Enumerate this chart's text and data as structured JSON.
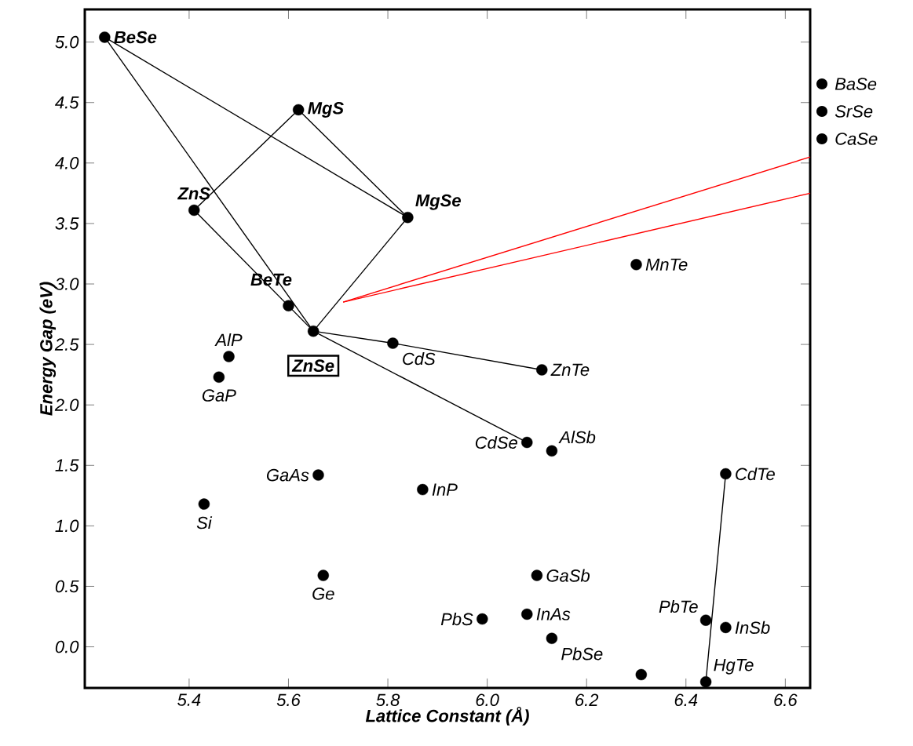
{
  "chart_data": {
    "type": "scatter",
    "xlabel": "Lattice Constant (Å)",
    "ylabel": "Energy Gap (eV)",
    "xlim": [
      5.19,
      6.65
    ],
    "ylim": [
      -0.34,
      5.27
    ],
    "xticks": [
      5.4,
      5.6,
      5.8,
      {
        "value": 6,
        "label": "6.0"
      },
      6.2,
      6.4,
      6.6
    ],
    "yticks": [
      {
        "value": 0,
        "label": "0.0"
      },
      0.5,
      {
        "value": 1,
        "label": "1.0"
      },
      1.5,
      {
        "value": 2,
        "label": "2.0"
      },
      2.5,
      {
        "value": 3,
        "label": "3.0"
      },
      3.5,
      {
        "value": 4,
        "label": "4.0"
      },
      4.5,
      {
        "value": 5,
        "label": "5.0"
      }
    ],
    "line_style": "solid",
    "series": [
      {
        "marker": "circle",
        "color": "#000000",
        "x": [
          5.23,
          5.62,
          5.41,
          5.84,
          5.6,
          5.65,
          5.81,
          6.11,
          6.3,
          5.48,
          5.46,
          6.08,
          6.13,
          5.66,
          5.87,
          5.43,
          6.48,
          5.67,
          6.1,
          5.99,
          6.08,
          6.13,
          6.44,
          6.48,
          6.44,
          6.31
        ],
        "values": [
          5.04,
          4.44,
          3.61,
          3.55,
          2.82,
          2.61,
          2.51,
          2.29,
          3.16,
          2.4,
          2.23,
          1.69,
          1.62,
          1.42,
          1.3,
          1.18,
          1.43,
          0.59,
          0.59,
          0.23,
          0.27,
          0.07,
          0.22,
          0.16,
          -0.29,
          -0.23
        ]
      },
      {
        "type": "line",
        "marker": "none",
        "color": "#000000",
        "x": [
          5.23,
          5.65
        ],
        "values": [
          5.04,
          2.61
        ]
      },
      {
        "type": "line",
        "marker": "none",
        "color": "#000000",
        "x": [
          5.23,
          5.84
        ],
        "values": [
          5.04,
          3.55
        ]
      },
      {
        "type": "line",
        "marker": "none",
        "color": "#000000",
        "x": [
          5.41,
          5.62,
          5.84
        ],
        "values": [
          3.61,
          4.44,
          3.55
        ]
      },
      {
        "type": "line",
        "marker": "none",
        "color": "#000000",
        "x": [
          5.41,
          5.65
        ],
        "values": [
          3.61,
          2.61
        ]
      },
      {
        "type": "line",
        "marker": "none",
        "color": "#000000",
        "x": [
          5.84,
          5.65
        ],
        "values": [
          3.55,
          2.61
        ]
      },
      {
        "type": "line",
        "marker": "none",
        "color": "#000000",
        "x": [
          5.65,
          5.81,
          6.11
        ],
        "values": [
          2.61,
          2.51,
          2.29
        ]
      },
      {
        "type": "line",
        "marker": "none",
        "color": "#000000",
        "x": [
          5.65,
          6.08
        ],
        "values": [
          2.61,
          1.69
        ]
      },
      {
        "type": "line",
        "marker": "none",
        "color": "#000000",
        "x": [
          6.48,
          6.44
        ],
        "values": [
          1.43,
          -0.29
        ]
      },
      {
        "type": "line",
        "marker": "none",
        "color": "#ff0000",
        "x": [
          5.71,
          6.65
        ],
        "values": [
          2.85,
          4.05
        ]
      },
      {
        "type": "line",
        "marker": "none",
        "color": "#ff0000",
        "x": [
          5.71,
          6.65
        ],
        "values": [
          2.85,
          3.75
        ]
      }
    ],
    "annotations": [
      {
        "text": "BeSe",
        "x": 5.23,
        "y": 5.04
      },
      {
        "text": "MgS",
        "x": 5.62,
        "y": 4.44
      },
      {
        "text": "ZnS",
        "x": 5.41,
        "y": 3.61
      },
      {
        "text": "MgSe",
        "x": 5.84,
        "y": 3.55
      },
      {
        "text": "BeTe",
        "x": 5.6,
        "y": 2.82
      },
      {
        "text": "ZnSe",
        "x": 5.65,
        "y": 2.61
      },
      {
        "text": "CdS",
        "x": 5.81,
        "y": 2.51
      },
      {
        "text": "ZnTe",
        "x": 6.11,
        "y": 2.29
      },
      {
        "text": "MnTe",
        "x": 6.3,
        "y": 3.16
      },
      {
        "text": "AlP",
        "x": 5.48,
        "y": 2.4
      },
      {
        "text": "GaP",
        "x": 5.46,
        "y": 2.23
      },
      {
        "text": "CdSe",
        "x": 6.08,
        "y": 1.69
      },
      {
        "text": "AlSb",
        "x": 6.13,
        "y": 1.62
      },
      {
        "text": "GaAs",
        "x": 5.66,
        "y": 1.42
      },
      {
        "text": "InP",
        "x": 5.87,
        "y": 1.3
      },
      {
        "text": "Si",
        "x": 5.43,
        "y": 1.18
      },
      {
        "text": "CdTe",
        "x": 6.48,
        "y": 1.43
      },
      {
        "text": "Ge",
        "x": 5.67,
        "y": 0.59
      },
      {
        "text": "GaSb",
        "x": 6.1,
        "y": 0.59
      },
      {
        "text": "PbS",
        "x": 5.99,
        "y": 0.23
      },
      {
        "text": "InAs",
        "x": 6.08,
        "y": 0.27
      },
      {
        "text": "PbSe",
        "x": 6.13,
        "y": 0.07
      },
      {
        "text": "PbTe",
        "x": 6.44,
        "y": 0.22
      },
      {
        "text": "InSb",
        "x": 6.48,
        "y": 0.16
      },
      {
        "text": "HgTe",
        "x": 6.44,
        "y": -0.29
      },
      "BaSe",
      "SrSe",
      "CaSe"
    ]
  }
}
